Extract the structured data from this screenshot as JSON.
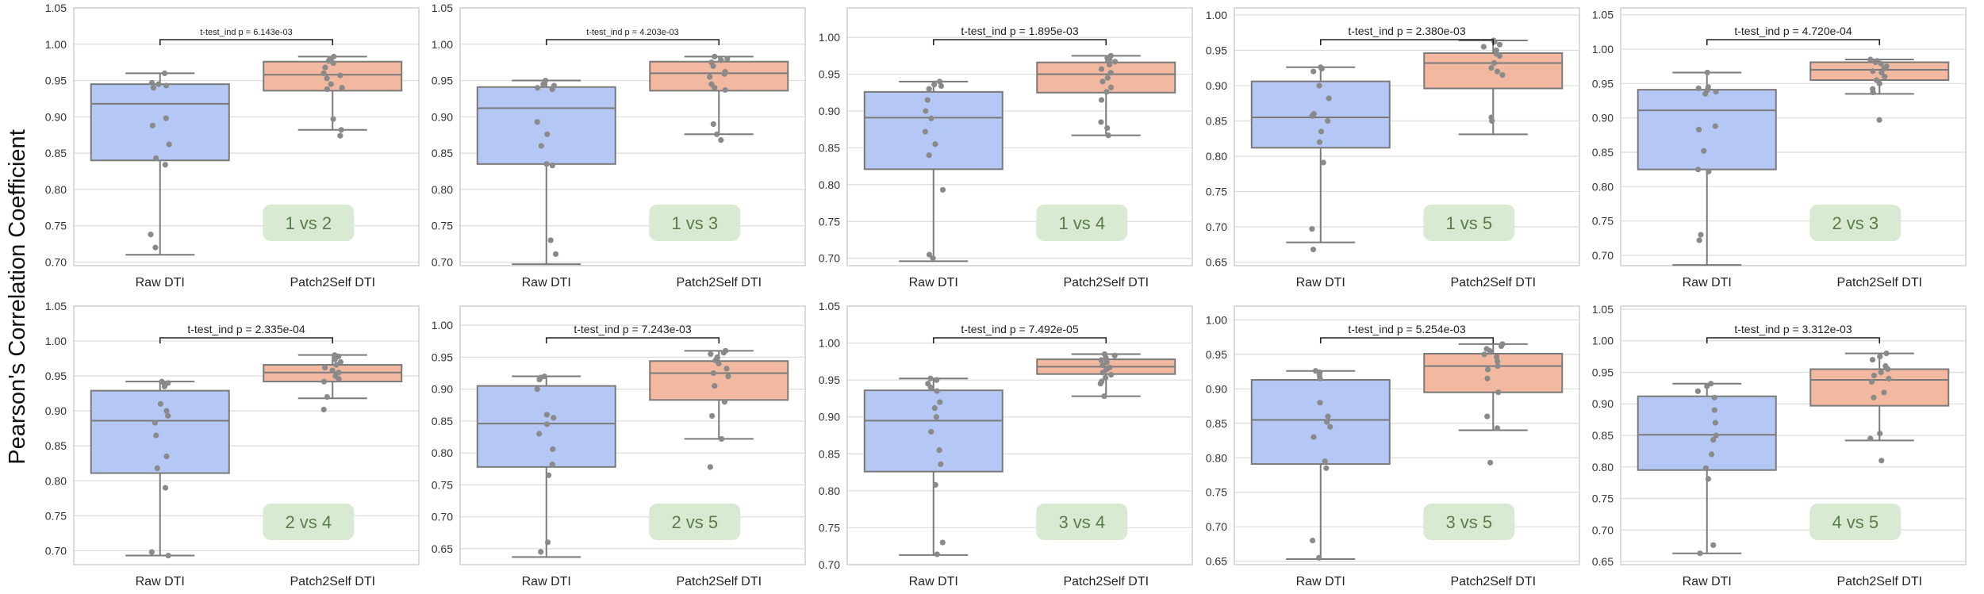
{
  "figure": {
    "ylabel": "Pearson's Correlation Coefficient"
  },
  "colors": {
    "raw_box": "#b4c7f5",
    "p2s_box": "#f2b9a0",
    "box_edge": "#7a7a7a",
    "point": "#8a8a8a",
    "grid": "#dcdcdc",
    "frame": "#cfcfcf",
    "tag_bg": "#d9ead3",
    "tag_text": "#5a7d49"
  },
  "chart_data": [
    {
      "type": "box",
      "tag": "1 vs 2",
      "categories": [
        "Raw DTI",
        "Patch2Self DTI"
      ],
      "ylim": [
        0.695,
        1.05
      ],
      "yticks": [
        0.7,
        0.75,
        0.8,
        0.85,
        0.9,
        0.95,
        1.0,
        1.05
      ],
      "annotation": "t-test_ind p = 6.143e-03",
      "annotation_size": "small",
      "boxes": [
        {
          "whislo": 0.71,
          "q1": 0.84,
          "med": 0.918,
          "q3": 0.945,
          "whishi": 0.96
        },
        {
          "whislo": 0.882,
          "q1": 0.936,
          "med": 0.958,
          "q3": 0.976,
          "whishi": 0.983
        }
      ],
      "points": [
        [
          0.96,
          0.947,
          0.945,
          0.943,
          0.94,
          0.898,
          0.888,
          0.862,
          0.843,
          0.834,
          0.738,
          0.72
        ],
        [
          0.983,
          0.98,
          0.977,
          0.974,
          0.968,
          0.96,
          0.957,
          0.953,
          0.945,
          0.94,
          0.938,
          0.897,
          0.882,
          0.874
        ]
      ]
    },
    {
      "type": "box",
      "tag": "1 vs 3",
      "categories": [
        "Raw DTI",
        "Patch2Self DTI"
      ],
      "ylim": [
        0.695,
        1.05
      ],
      "yticks": [
        0.7,
        0.75,
        0.8,
        0.85,
        0.9,
        0.95,
        1.0,
        1.05
      ],
      "annotation": "t-test_ind p = 4.203e-03",
      "annotation_size": "small",
      "boxes": [
        {
          "whislo": 0.697,
          "q1": 0.835,
          "med": 0.912,
          "q3": 0.941,
          "whishi": 0.95
        },
        {
          "whislo": 0.876,
          "q1": 0.936,
          "med": 0.96,
          "q3": 0.976,
          "whishi": 0.983
        }
      ],
      "points": [
        [
          0.95,
          0.945,
          0.943,
          0.94,
          0.938,
          0.893,
          0.876,
          0.86,
          0.835,
          0.833,
          0.73,
          0.711
        ],
        [
          0.983,
          0.98,
          0.978,
          0.975,
          0.97,
          0.962,
          0.959,
          0.955,
          0.945,
          0.94,
          0.937,
          0.89,
          0.876,
          0.868
        ]
      ]
    },
    {
      "type": "box",
      "tag": "1 vs 4",
      "categories": [
        "Raw DTI",
        "Patch2Self DTI"
      ],
      "ylim": [
        0.69,
        1.04
      ],
      "yticks": [
        0.7,
        0.75,
        0.8,
        0.85,
        0.9,
        0.95,
        1.0
      ],
      "annotation": "t-test_ind p = 1.895e-03",
      "annotation_size": "large",
      "boxes": [
        {
          "whislo": 0.696,
          "q1": 0.821,
          "med": 0.891,
          "q3": 0.926,
          "whishi": 0.94
        },
        {
          "whislo": 0.867,
          "q1": 0.925,
          "med": 0.95,
          "q3": 0.966,
          "whishi": 0.975
        }
      ],
      "points": [
        [
          0.94,
          0.936,
          0.934,
          0.93,
          0.915,
          0.9,
          0.89,
          0.872,
          0.855,
          0.84,
          0.793,
          0.705,
          0.7
        ],
        [
          0.975,
          0.972,
          0.97,
          0.967,
          0.963,
          0.957,
          0.952,
          0.945,
          0.94,
          0.932,
          0.926,
          0.915,
          0.885,
          0.877,
          0.867
        ]
      ]
    },
    {
      "type": "box",
      "tag": "1 vs 5",
      "categories": [
        "Raw DTI",
        "Patch2Self DTI"
      ],
      "ylim": [
        0.645,
        1.01
      ],
      "yticks": [
        0.65,
        0.7,
        0.75,
        0.8,
        0.85,
        0.9,
        0.95,
        1.0
      ],
      "annotation": "t-test_ind p = 2.380e-03",
      "annotation_size": "large",
      "boxes": [
        {
          "whislo": 0.678,
          "q1": 0.812,
          "med": 0.855,
          "q3": 0.906,
          "whishi": 0.926
        },
        {
          "whislo": 0.831,
          "q1": 0.896,
          "med": 0.932,
          "q3": 0.946,
          "whishi": 0.964
        }
      ],
      "points": [
        [
          0.926,
          0.924,
          0.92,
          0.9,
          0.882,
          0.86,
          0.857,
          0.85,
          0.835,
          0.82,
          0.791,
          0.697,
          0.668
        ],
        [
          0.964,
          0.962,
          0.958,
          0.955,
          0.95,
          0.945,
          0.942,
          0.932,
          0.925,
          0.92,
          0.915,
          0.855,
          0.85
        ]
      ]
    },
    {
      "type": "box",
      "tag": "2  vs 3",
      "categories": [
        "Raw DTI",
        "Patch2Self DTI"
      ],
      "ylim": [
        0.685,
        1.06
      ],
      "yticks": [
        0.7,
        0.75,
        0.8,
        0.85,
        0.9,
        0.95,
        1.0,
        1.05
      ],
      "annotation": "t-test_ind p = 4.720e-04",
      "annotation_size": "large",
      "boxes": [
        {
          "whislo": 0.686,
          "q1": 0.825,
          "med": 0.911,
          "q3": 0.941,
          "whishi": 0.966
        },
        {
          "whislo": 0.935,
          "q1": 0.955,
          "med": 0.97,
          "q3": 0.981,
          "whishi": 0.985
        }
      ],
      "points": [
        [
          0.966,
          0.945,
          0.943,
          0.94,
          0.938,
          0.935,
          0.888,
          0.883,
          0.852,
          0.825,
          0.822,
          0.73,
          0.722
        ],
        [
          0.985,
          0.983,
          0.981,
          0.979,
          0.975,
          0.972,
          0.968,
          0.966,
          0.96,
          0.955,
          0.95,
          0.942,
          0.937,
          0.897
        ]
      ]
    },
    {
      "type": "box",
      "tag": "2  vs 4",
      "categories": [
        "Raw DTI",
        "Patch2Self DTI"
      ],
      "ylim": [
        0.68,
        1.05
      ],
      "yticks": [
        0.7,
        0.75,
        0.8,
        0.85,
        0.9,
        0.95,
        1.0,
        1.05
      ],
      "annotation": "t-test_ind p = 2.335e-04",
      "annotation_size": "large",
      "boxes": [
        {
          "whislo": 0.693,
          "q1": 0.811,
          "med": 0.886,
          "q3": 0.929,
          "whishi": 0.942
        },
        {
          "whislo": 0.918,
          "q1": 0.942,
          "med": 0.955,
          "q3": 0.966,
          "whishi": 0.98
        }
      ],
      "points": [
        [
          0.942,
          0.94,
          0.938,
          0.935,
          0.91,
          0.9,
          0.893,
          0.883,
          0.865,
          0.835,
          0.818,
          0.79,
          0.698,
          0.693
        ],
        [
          0.98,
          0.978,
          0.976,
          0.974,
          0.97,
          0.966,
          0.962,
          0.958,
          0.955,
          0.95,
          0.946,
          0.942,
          0.92,
          0.902
        ]
      ]
    },
    {
      "type": "box",
      "tag": "2  vs 5",
      "categories": [
        "Raw DTI",
        "Patch2Self DTI"
      ],
      "ylim": [
        0.625,
        1.03
      ],
      "yticks": [
        0.65,
        0.7,
        0.75,
        0.8,
        0.85,
        0.9,
        0.95,
        1.0
      ],
      "annotation": "t-test_ind p = 7.243e-03",
      "annotation_size": "large",
      "boxes": [
        {
          "whislo": 0.637,
          "q1": 0.778,
          "med": 0.846,
          "q3": 0.905,
          "whishi": 0.92
        },
        {
          "whislo": 0.822,
          "q1": 0.883,
          "med": 0.925,
          "q3": 0.944,
          "whishi": 0.96
        }
      ],
      "points": [
        [
          0.92,
          0.918,
          0.915,
          0.9,
          0.86,
          0.855,
          0.845,
          0.83,
          0.806,
          0.782,
          0.765,
          0.66,
          0.645
        ],
        [
          0.96,
          0.957,
          0.955,
          0.95,
          0.945,
          0.94,
          0.932,
          0.925,
          0.92,
          0.905,
          0.88,
          0.858,
          0.822,
          0.778
        ]
      ]
    },
    {
      "type": "box",
      "tag": "3  vs 4",
      "categories": [
        "Raw DTI",
        "Patch2Self DTI"
      ],
      "ylim": [
        0.7,
        1.05
      ],
      "yticks": [
        0.7,
        0.75,
        0.8,
        0.85,
        0.9,
        0.95,
        1.0,
        1.05
      ],
      "annotation": "t-test_ind p = 7.492e-05",
      "annotation_size": "large",
      "boxes": [
        {
          "whislo": 0.713,
          "q1": 0.826,
          "med": 0.895,
          "q3": 0.936,
          "whishi": 0.952
        },
        {
          "whislo": 0.928,
          "q1": 0.958,
          "med": 0.968,
          "q3": 0.978,
          "whishi": 0.985
        }
      ],
      "points": [
        [
          0.952,
          0.95,
          0.945,
          0.94,
          0.935,
          0.92,
          0.912,
          0.9,
          0.88,
          0.855,
          0.836,
          0.808,
          0.73,
          0.714
        ],
        [
          0.985,
          0.983,
          0.98,
          0.977,
          0.974,
          0.97,
          0.967,
          0.964,
          0.96,
          0.957,
          0.953,
          0.948,
          0.945,
          0.928
        ]
      ]
    },
    {
      "type": "box",
      "tag": "3  vs 5",
      "categories": [
        "Raw DTI",
        "Patch2Self DTI"
      ],
      "ylim": [
        0.645,
        1.02
      ],
      "yticks": [
        0.65,
        0.7,
        0.75,
        0.8,
        0.85,
        0.9,
        0.95,
        1.0
      ],
      "annotation": "t-test_ind p = 5.254e-03",
      "annotation_size": "large",
      "boxes": [
        {
          "whislo": 0.653,
          "q1": 0.791,
          "med": 0.855,
          "q3": 0.913,
          "whishi": 0.926
        },
        {
          "whislo": 0.84,
          "q1": 0.895,
          "med": 0.933,
          "q3": 0.951,
          "whishi": 0.965
        }
      ],
      "points": [
        [
          0.926,
          0.924,
          0.92,
          0.915,
          0.88,
          0.86,
          0.852,
          0.845,
          0.83,
          0.795,
          0.785,
          0.68,
          0.655
        ],
        [
          0.965,
          0.962,
          0.958,
          0.955,
          0.95,
          0.946,
          0.94,
          0.933,
          0.928,
          0.915,
          0.895,
          0.86,
          0.843,
          0.793
        ]
      ]
    },
    {
      "type": "box",
      "tag": "4  vs 5",
      "categories": [
        "Raw DTI",
        "Patch2Self DTI"
      ],
      "ylim": [
        0.645,
        1.055
      ],
      "yticks": [
        0.65,
        0.7,
        0.75,
        0.8,
        0.85,
        0.9,
        0.95,
        1.0,
        1.05
      ],
      "annotation": "t-test_ind p = 3.312e-03",
      "annotation_size": "large",
      "boxes": [
        {
          "whislo": 0.663,
          "q1": 0.795,
          "med": 0.851,
          "q3": 0.912,
          "whishi": 0.932
        },
        {
          "whislo": 0.842,
          "q1": 0.897,
          "med": 0.938,
          "q3": 0.955,
          "whishi": 0.98
        }
      ],
      "points": [
        [
          0.932,
          0.928,
          0.92,
          0.91,
          0.89,
          0.87,
          0.85,
          0.843,
          0.82,
          0.798,
          0.781,
          0.676,
          0.663
        ],
        [
          0.98,
          0.975,
          0.97,
          0.96,
          0.955,
          0.95,
          0.945,
          0.94,
          0.935,
          0.918,
          0.91,
          0.853,
          0.845,
          0.81
        ]
      ]
    }
  ]
}
